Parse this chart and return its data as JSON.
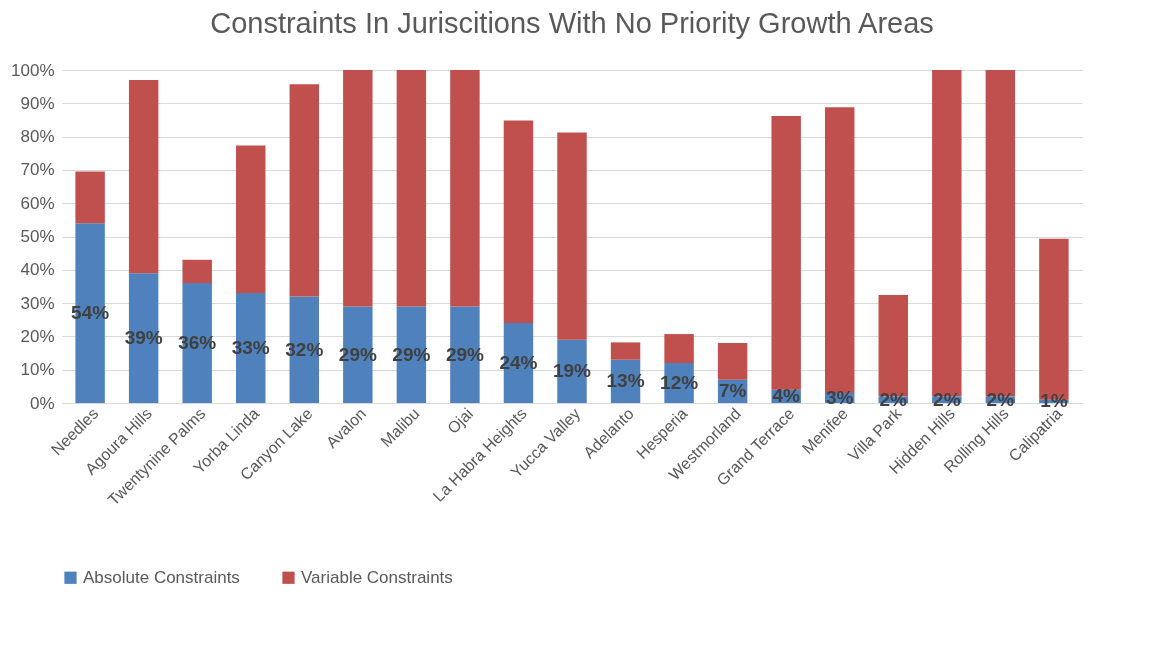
{
  "chart_data": {
    "type": "bar",
    "title": "Constraints In Juriscitions With No Priority Growth Areas",
    "stacked": true,
    "categories": [
      "Needles",
      "Agoura Hills",
      "Twentynine Palms",
      "Yorba Linda",
      "Canyon Lake",
      "Avalon",
      "Malibu",
      "Ojai",
      "La Habra Heights",
      "Yucca Valley",
      "Adelanto",
      "Hesperia",
      "Westmorland",
      "Grand Terrace",
      "Menifee",
      "Villa Park",
      "Hidden Hills",
      "Rolling Hills",
      "Calipatria"
    ],
    "series": [
      {
        "name": "Absolute Constraints",
        "color": "#4f81bd",
        "values": [
          54,
          39,
          36,
          33,
          32,
          29,
          29,
          29,
          24,
          19,
          13,
          12,
          7,
          4,
          3,
          2,
          2,
          2,
          1
        ],
        "value_labels": [
          "54%",
          "39%",
          "36%",
          "33%",
          "32%",
          "29%",
          "29%",
          "29%",
          "24%",
          "19%",
          "13%",
          "12%",
          "7%",
          "4%",
          "3%",
          "2%",
          "2%",
          "2%",
          "1%"
        ]
      },
      {
        "name": "Variable Constraints",
        "color": "#c0504d",
        "values": [
          15.5,
          58,
          7,
          44.3,
          63.7,
          71,
          71,
          71,
          60.8,
          62.2,
          5.2,
          8.7,
          11,
          82.2,
          85.8,
          30.4,
          98,
          98,
          48.3
        ]
      }
    ],
    "ylim": [
      0,
      100
    ],
    "yticks": [
      {
        "value": 0,
        "label": "0%"
      },
      {
        "value": 10,
        "label": "10%"
      },
      {
        "value": 20,
        "label": "20%"
      },
      {
        "value": 30,
        "label": "30%"
      },
      {
        "value": 40,
        "label": "40%"
      },
      {
        "value": 50,
        "label": "50%"
      },
      {
        "value": 60,
        "label": "60%"
      },
      {
        "value": 70,
        "label": "70%"
      },
      {
        "value": 80,
        "label": "80%"
      },
      {
        "value": 90,
        "label": "90%"
      },
      {
        "value": 100,
        "label": "100%"
      }
    ],
    "grid": true,
    "legend": "bottom"
  }
}
